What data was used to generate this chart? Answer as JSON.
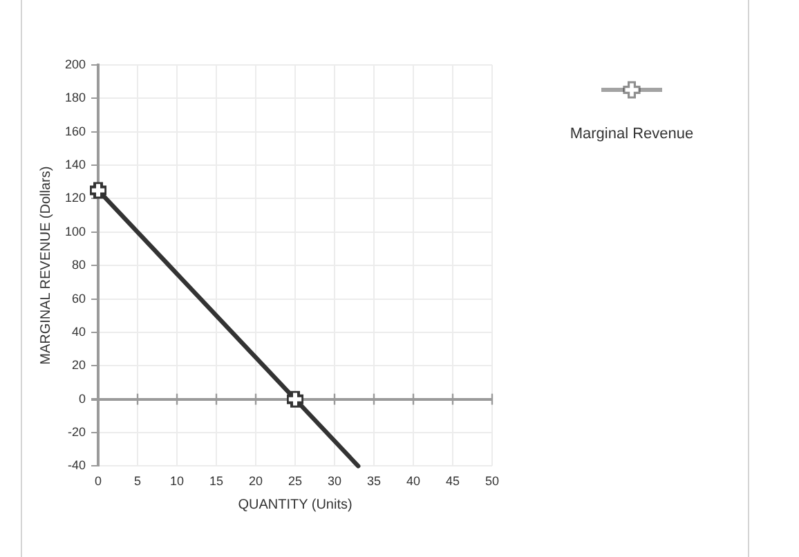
{
  "chart_data": {
    "type": "line",
    "xlabel": "QUANTITY (Units)",
    "ylabel": "MARGINAL REVENUE (Dollars)",
    "series": [
      {
        "name": "Marginal Revenue",
        "color": "#333333",
        "x": [
          0,
          25
        ],
        "values": [
          125,
          0
        ],
        "marker": "cross"
      },
      {
        "color": "#333333",
        "x": [
          25,
          33
        ],
        "values": [
          0,
          -40
        ]
      }
    ],
    "xlim": [
      0,
      50
    ],
    "xticks": [
      0,
      5,
      10,
      15,
      20,
      25,
      30,
      35,
      40,
      45,
      50
    ],
    "ylim": [
      -40,
      200
    ],
    "yticks": [
      -40,
      -20,
      0,
      20,
      40,
      60,
      80,
      100,
      120,
      140,
      160,
      180,
      200
    ],
    "grid": true,
    "legend": "top right",
    "line_style": "solid"
  }
}
